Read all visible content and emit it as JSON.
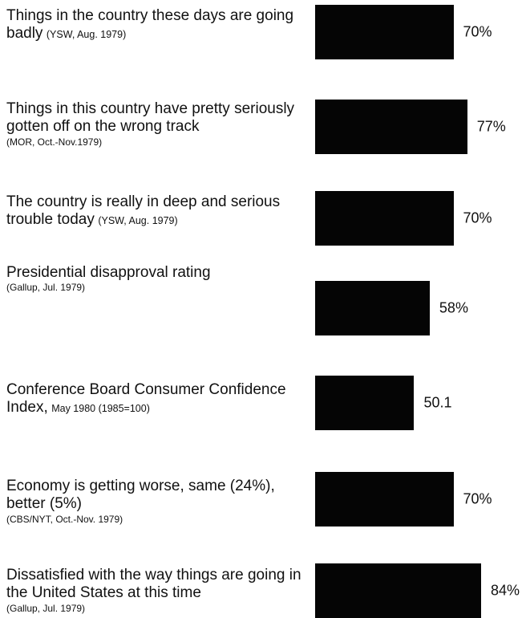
{
  "chart_data": {
    "type": "bar",
    "orientation": "horizontal",
    "title": "",
    "xlabel": "",
    "ylabel": "",
    "xlim": [
      0,
      84
    ],
    "grid": false,
    "bar_color": "#050505",
    "rows": [
      {
        "main": "Things in the country these days are going badly",
        "inline_source": "(YSW, Aug. 1979)",
        "source_line": "",
        "value": 70,
        "value_label": "70%"
      },
      {
        "main": "Things in this country have pretty seriously gotten off on the wrong track",
        "inline_source": "",
        "source_line": "(MOR, Oct.-Nov.1979)",
        "value": 77,
        "value_label": "77%"
      },
      {
        "main": "The country is really in deep and serious trouble today",
        "inline_source": "(YSW, Aug. 1979)",
        "source_line": "",
        "value": 70,
        "value_label": "70%"
      },
      {
        "main": "Presidential disapproval rating",
        "inline_source": "",
        "source_line": "(Gallup, Jul. 1979)",
        "value": 58,
        "value_label": "58%"
      },
      {
        "main": "Conference Board Consumer Confidence Index,",
        "inline_source": "May 1980 (1985=100)",
        "source_line": "",
        "value": 50.1,
        "value_label": "50.1"
      },
      {
        "main": "Economy is getting worse, same (24%), better (5%)",
        "inline_source": "",
        "source_line": "(CBS/NYT, Oct.-Nov. 1979)",
        "value": 70,
        "value_label": "70%"
      },
      {
        "main": "Dissatisfied with the way things are going in the United States at this time",
        "inline_source": "",
        "source_line": "(Gallup, Jul. 1979)",
        "value": 84,
        "value_label": "84%"
      }
    ]
  }
}
